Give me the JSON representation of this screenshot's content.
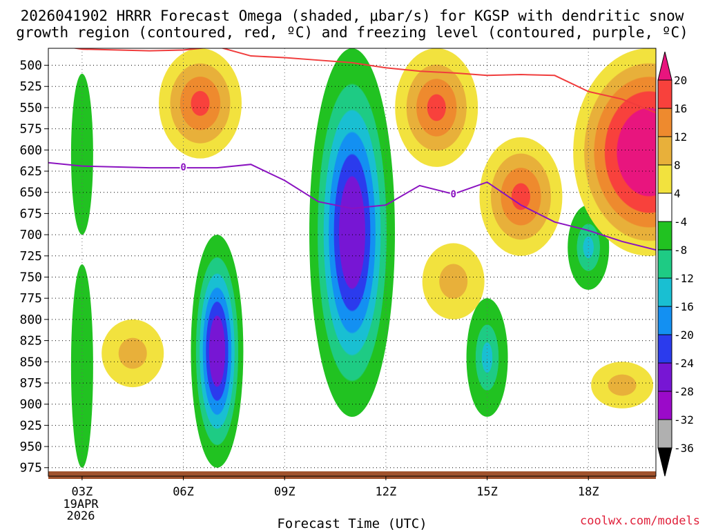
{
  "chart_data": {
    "type": "heatmap",
    "title_line1": "2026041902 HRRR Forecast Omega (shaded, μbar/s) for KGSP with dendritic snow",
    "title_line2": "growth region (contoured, red, ºC) and freezing level (contoured, purple, ºC)",
    "xlabel": "Forecast Time (UTC)",
    "credit": "coolwx.com/models",
    "date_label_1": "19APR",
    "date_label_2": "2026",
    "x_ticks": [
      {
        "hour": 3,
        "label": "03Z"
      },
      {
        "hour": 6,
        "label": "06Z"
      },
      {
        "hour": 9,
        "label": "09Z"
      },
      {
        "hour": 12,
        "label": "12Z"
      },
      {
        "hour": 15,
        "label": "15Z"
      },
      {
        "hour": 18,
        "label": "18Z"
      }
    ],
    "x_range_hours": [
      2,
      20
    ],
    "y_range_hpa": [
      480,
      985
    ],
    "y_ticks": [
      500,
      525,
      550,
      575,
      600,
      625,
      650,
      675,
      700,
      725,
      750,
      775,
      800,
      825,
      850,
      875,
      900,
      925,
      950,
      975
    ],
    "colorbar_levels": [
      "20",
      "16",
      "12",
      "8",
      "4",
      "-4",
      "-8",
      "-12",
      "-16",
      "-20",
      "-24",
      "-28",
      "-32",
      "-36"
    ],
    "colorbar_colors": [
      "#e8157e",
      "#f8413c",
      "#ee8a2e",
      "#e8b03a",
      "#f2e23e",
      "#ffffff",
      "#21c221",
      "#1ecb84",
      "#19bfd2",
      "#1390f2",
      "#2b3bed",
      "#7716d4",
      "#9b0ac9",
      "#b0b0b0",
      "#000000"
    ],
    "freezing_level": {
      "label": "0",
      "label_points": [
        {
          "hour": 6,
          "p": 620
        },
        {
          "hour": 14,
          "p": 652
        }
      ],
      "hours": [
        2,
        3,
        5,
        6,
        7,
        8,
        9,
        10,
        11,
        12,
        13,
        14,
        15,
        16,
        17,
        18,
        19,
        20
      ],
      "pressure": [
        615,
        619,
        621,
        621,
        621,
        617,
        636,
        661,
        669,
        665,
        642,
        652,
        638,
        665,
        685,
        695,
        708,
        718
      ]
    },
    "dgz_top": {
      "hours": [
        2,
        3,
        5,
        6,
        7,
        8,
        9,
        10,
        11,
        12,
        13,
        14,
        15,
        16,
        17,
        18,
        19,
        20
      ],
      "pressure": [
        475,
        481,
        483,
        482,
        478,
        489,
        491,
        494,
        497,
        503,
        507,
        509,
        512,
        511,
        512,
        531,
        540,
        556
      ]
    },
    "omega_cores": [
      {
        "name": "upward-core-11z",
        "hour": 11,
        "p_top": 480,
        "p_bottom": 915,
        "min_value": -30
      },
      {
        "name": "upward-core-07z",
        "hour": 7,
        "p_top": 700,
        "p_bottom": 975,
        "min_value": -28
      },
      {
        "name": "upward-band-03z",
        "hour": 3,
        "p_top": 510,
        "p_bottom": 700,
        "min_value": -6
      },
      {
        "name": "upward-lower-03z",
        "hour": 3,
        "p_top": 735,
        "p_bottom": 975,
        "min_value": -6
      },
      {
        "name": "upward-cell-18z",
        "hour": 18,
        "p_top": 665,
        "p_bottom": 765,
        "min_value": -10
      },
      {
        "name": "upward-cell-15z",
        "hour": 15,
        "p_top": 775,
        "p_bottom": 915,
        "min_value": -10
      },
      {
        "name": "sinking-core-0630z",
        "hour": 6.5,
        "p_top": 480,
        "p_bottom": 610,
        "max_value": 18
      },
      {
        "name": "sinking-core-16z",
        "hour": 16,
        "p_top": 585,
        "p_bottom": 725,
        "max_value": 17
      },
      {
        "name": "sinking-core-1330z",
        "hour": 13.5,
        "p_top": 480,
        "p_bottom": 620,
        "max_value": 13
      },
      {
        "name": "sinking-core-20z",
        "hour": 19.8,
        "p_top": 480,
        "p_bottom": 725,
        "max_value": 22
      },
      {
        "name": "sinking-cell-0430z",
        "hour": 4.5,
        "p_top": 800,
        "p_bottom": 880,
        "max_value": 9
      },
      {
        "name": "sinking-cell-19z",
        "hour": 19,
        "p_top": 850,
        "p_bottom": 905,
        "max_value": 9
      },
      {
        "name": "sinking-cell-14z",
        "hour": 14,
        "p_top": 710,
        "p_bottom": 800,
        "max_value": 8
      }
    ]
  }
}
